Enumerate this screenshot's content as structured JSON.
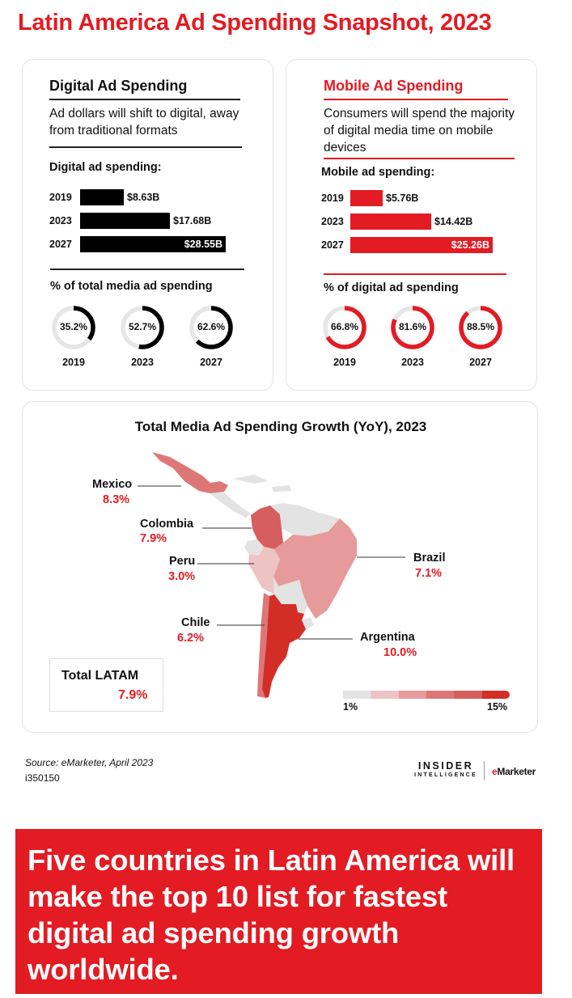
{
  "header": {
    "title": "Latin America Ad Spending Snapshot, 2023"
  },
  "digital": {
    "title": "Digital Ad Spending",
    "subtitle": "Ad dollars will shift to digital, away from traditional formats",
    "bars_label": "Digital ad spending:",
    "donuts_label": "% of total media ad spending",
    "color": "#000000"
  },
  "mobile": {
    "title": "Mobile Ad Spending",
    "subtitle": "Consumers will spend the majority of digital media time on mobile devices",
    "bars_label": "Mobile ad spending:",
    "donuts_label": "% of digital ad spending",
    "color": "#e31b23"
  },
  "map": {
    "title": "Total Media Ad Spending Growth (YoY), 2023",
    "total_label": "Total LATAM",
    "total_value": "7.9%",
    "scale_min": "1%",
    "scale_max": "15%",
    "scale_colors": [
      "#e3e3e3",
      "#eec3c3",
      "#e69a9a",
      "#dd7777",
      "#d65e5e",
      "#d32e26"
    ]
  },
  "footer": {
    "source": "Source: eMarketer, April 2023",
    "chart_id": "i350150",
    "logo_line1": "INSIDER",
    "logo_line2": "INTELLIGENCE",
    "logo_e": "e",
    "logo_rest": "Marketer"
  },
  "banner": {
    "text": "Five countries in Latin America will make the top 10 list for fastest digital ad spending growth worldwide."
  },
  "chart_data": [
    {
      "type": "bar",
      "title": "Digital ad spending:",
      "categories": [
        "2019",
        "2023",
        "2027"
      ],
      "values": [
        8.63,
        17.68,
        28.55
      ],
      "labels": [
        "$8.63B",
        "$17.68B",
        "$28.55B"
      ],
      "unit": "USD billions",
      "max": 28.55
    },
    {
      "type": "pie",
      "title": "% of total media ad spending",
      "categories": [
        "2019",
        "2023",
        "2027"
      ],
      "values": [
        35.2,
        52.7,
        62.6
      ],
      "labels": [
        "35.2%",
        "52.7%",
        "62.6%"
      ]
    },
    {
      "type": "bar",
      "title": "Mobile ad spending:",
      "categories": [
        "2019",
        "2023",
        "2027"
      ],
      "values": [
        5.76,
        14.42,
        25.26
      ],
      "labels": [
        "$5.76B",
        "$14.42B",
        "$25.26B"
      ],
      "unit": "USD billions",
      "max": 25.26
    },
    {
      "type": "pie",
      "title": "% of digital ad spending",
      "categories": [
        "2019",
        "2023",
        "2027"
      ],
      "values": [
        66.8,
        81.6,
        88.5
      ],
      "labels": [
        "66.8%",
        "81.6%",
        "88.5%"
      ]
    },
    {
      "type": "heatmap",
      "title": "Total Media Ad Spending Growth (YoY), 2023",
      "categories": [
        "Mexico",
        "Colombia",
        "Peru",
        "Brazil",
        "Chile",
        "Argentina"
      ],
      "values": [
        8.3,
        7.9,
        3.0,
        7.1,
        6.2,
        10.0
      ],
      "labels": [
        "8.3%",
        "7.9%",
        "3.0%",
        "7.1%",
        "6.2%",
        "10.0%"
      ],
      "range": [
        1,
        15
      ]
    }
  ]
}
